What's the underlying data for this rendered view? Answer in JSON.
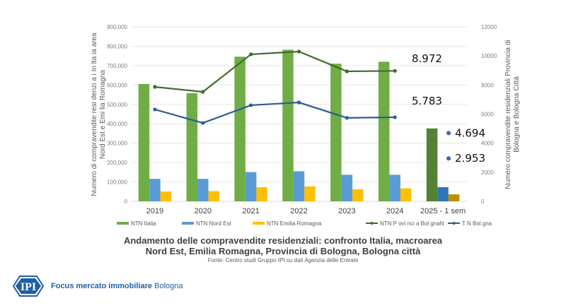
{
  "chart_data": {
    "type": "bar",
    "title": "Andamento delle compravendite residenziali: confronto Italia, macroarea Nord Est, Emilia Romagna, Provincia di Bologna, Bologna città",
    "title_line1": "Andamento delle compravendite residenziali: confronto Italia, macroarea",
    "title_line2": "Nord Est, Emilia Romagna, Provincia di Bologna, Bologna città",
    "source": "Fonte: Centro studi Gruppo IPI su dati Agenzia delle Entrate",
    "categories": [
      "2019",
      "2020",
      "2021",
      "2022",
      "2023",
      "2024",
      "2025 - 1 sem"
    ],
    "ylabel_left_line1": "Numero di compravendite resi denzi a i In lta ia area",
    "ylabel_left_line2": "Nord Est e Emi lia Romagna",
    "ylabel_right_line1": "Numero compravendite residenziali Provincia di",
    "ylabel_right_line2": "Bologna e Bologna Città",
    "ylim_left": [
      0,
      900000
    ],
    "yticks_left": [
      "0",
      "100,000",
      "200,000",
      "300,000",
      "400,000",
      "500,000",
      "600,000",
      "700,000",
      "800,000",
      "900,000"
    ],
    "ylim_right": [
      0,
      12000
    ],
    "yticks_right": [
      "0",
      "2000",
      "4000",
      "6000",
      "8000",
      "10000",
      "12000"
    ],
    "grid": true,
    "legend_position": "bottom",
    "bar_series": [
      {
        "name": "NTN Italia",
        "color": "#70ad47",
        "last_color": "#548235",
        "values": [
          605000,
          558000,
          746000,
          782000,
          710000,
          720000,
          376000
        ]
      },
      {
        "name": "NTN Nord Est",
        "color": "#5b9bd5",
        "last_color": "#2e75b6",
        "values": [
          116000,
          116000,
          151000,
          155000,
          137000,
          137000,
          73000
        ]
      },
      {
        "name": "NTN Emilia Romagna",
        "color": "#ffc000",
        "last_color": "#bf9000",
        "values": [
          51000,
          53000,
          73000,
          77000,
          62000,
          67000,
          36000
        ]
      }
    ],
    "line_series": [
      {
        "name": "NTN P ovi nci a Bol gnaN",
        "color": "#3f6b2a",
        "values": [
          7870,
          7530,
          10110,
          10300,
          8940,
          8972,
          null
        ]
      },
      {
        "name": "T N Bol gna",
        "color": "#2f5c8f",
        "values": [
          6320,
          5390,
          6610,
          6800,
          5740,
          5783,
          null
        ]
      }
    ],
    "point_markers_2025": [
      {
        "series": "NTN Provincia di Bologna",
        "value": 4694,
        "label": "4.694"
      },
      {
        "series": "NTN Bologna",
        "value": 2953,
        "label": "2.953"
      }
    ],
    "annotations": [
      {
        "label": "8.972",
        "series": "NTN Provincia di Bologna",
        "category": "2024"
      },
      {
        "label": "5.783",
        "series": "NTN Bologna",
        "category": "2024"
      }
    ]
  },
  "footer": {
    "logo_text": "IPI",
    "brand_bold": "Focus mercato immobiliare",
    "brand_city": "Bologna"
  }
}
